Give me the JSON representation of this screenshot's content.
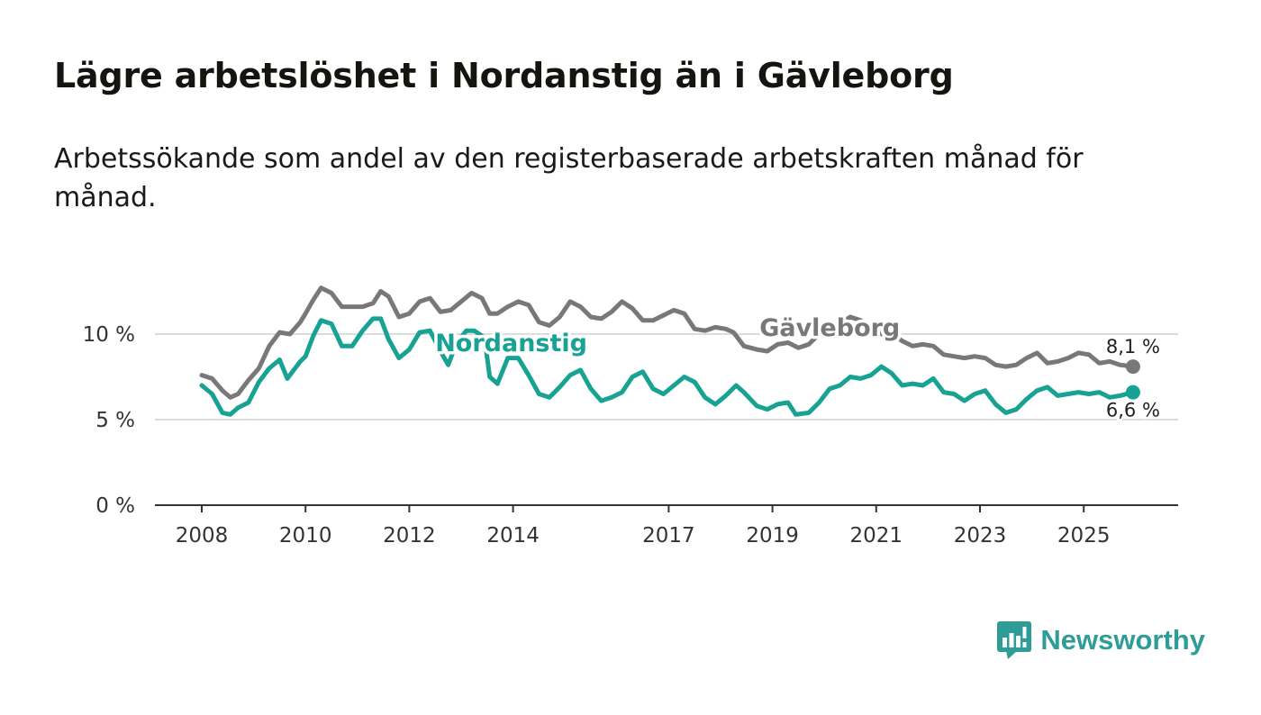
{
  "title": "Lägre arbetslöshet i Nordanstig än i Gävleborg",
  "subtitle": "Arbetssökande som andel av den registerbaserade arbetskraften månad för månad.",
  "brand": {
    "name": "Newsworthy",
    "icon": "newsworthy-logo-icon",
    "color": "#2f9d97"
  },
  "chart_data": {
    "type": "line",
    "title": "Lägre arbetslöshet i Nordanstig än i Gävleborg",
    "xlabel": "",
    "ylabel": "",
    "x_range": [
      2008,
      2026
    ],
    "ylim": [
      0,
      13.5
    ],
    "y_ticks": [
      {
        "value": 0,
        "label": "0 %"
      },
      {
        "value": 5,
        "label": "5 %"
      },
      {
        "value": 10,
        "label": "10 %"
      }
    ],
    "x_ticks": [
      {
        "value": 2008,
        "label": "2008"
      },
      {
        "value": 2010,
        "label": "2010"
      },
      {
        "value": 2012,
        "label": "2012"
      },
      {
        "value": 2014,
        "label": "2014"
      },
      {
        "value": 2017,
        "label": "2017"
      },
      {
        "value": 2019,
        "label": "2019"
      },
      {
        "value": 2021,
        "label": "2021"
      },
      {
        "value": 2023,
        "label": "2023"
      },
      {
        "value": 2025,
        "label": "2025"
      }
    ],
    "grid": true,
    "series": [
      {
        "name": "Gävleborg",
        "color": "#7a777a",
        "end_label": "8,1 %",
        "end_value": 8.1,
        "label_x": 2018.75,
        "label_y": 9.9,
        "points": [
          [
            2008.0,
            7.6
          ],
          [
            2008.2,
            7.4
          ],
          [
            2008.4,
            6.7
          ],
          [
            2008.55,
            6.3
          ],
          [
            2008.7,
            6.5
          ],
          [
            2008.9,
            7.3
          ],
          [
            2009.1,
            8.0
          ],
          [
            2009.3,
            9.3
          ],
          [
            2009.5,
            10.1
          ],
          [
            2009.7,
            10.0
          ],
          [
            2009.9,
            10.7
          ],
          [
            2010.0,
            11.2
          ],
          [
            2010.15,
            12.0
          ],
          [
            2010.3,
            12.7
          ],
          [
            2010.5,
            12.4
          ],
          [
            2010.7,
            11.6
          ],
          [
            2010.9,
            11.6
          ],
          [
            2011.1,
            11.6
          ],
          [
            2011.3,
            11.8
          ],
          [
            2011.45,
            12.5
          ],
          [
            2011.6,
            12.2
          ],
          [
            2011.8,
            11.0
          ],
          [
            2012.0,
            11.2
          ],
          [
            2012.2,
            11.9
          ],
          [
            2012.4,
            12.1
          ],
          [
            2012.6,
            11.3
          ],
          [
            2012.8,
            11.4
          ],
          [
            2013.0,
            11.9
          ],
          [
            2013.2,
            12.4
          ],
          [
            2013.4,
            12.1
          ],
          [
            2013.55,
            11.2
          ],
          [
            2013.7,
            11.2
          ],
          [
            2013.9,
            11.6
          ],
          [
            2014.1,
            11.9
          ],
          [
            2014.3,
            11.7
          ],
          [
            2014.5,
            10.7
          ],
          [
            2014.7,
            10.5
          ],
          [
            2014.9,
            11.0
          ],
          [
            2015.1,
            11.9
          ],
          [
            2015.3,
            11.6
          ],
          [
            2015.5,
            11.0
          ],
          [
            2015.7,
            10.9
          ],
          [
            2015.9,
            11.3
          ],
          [
            2016.1,
            11.9
          ],
          [
            2016.3,
            11.5
          ],
          [
            2016.5,
            10.8
          ],
          [
            2016.7,
            10.8
          ],
          [
            2016.9,
            11.1
          ],
          [
            2017.1,
            11.4
          ],
          [
            2017.3,
            11.2
          ],
          [
            2017.5,
            10.3
          ],
          [
            2017.7,
            10.2
          ],
          [
            2017.9,
            10.4
          ],
          [
            2018.1,
            10.3
          ],
          [
            2018.25,
            10.1
          ],
          [
            2018.45,
            9.3
          ],
          [
            2018.7,
            9.1
          ],
          [
            2018.9,
            9.0
          ],
          [
            2019.1,
            9.4
          ],
          [
            2019.3,
            9.5
          ],
          [
            2019.5,
            9.2
          ],
          [
            2019.7,
            9.4
          ],
          [
            2019.9,
            10.0
          ],
          [
            2020.1,
            10.1
          ],
          [
            2020.3,
            10.6
          ],
          [
            2020.5,
            11.0
          ],
          [
            2020.7,
            10.8
          ],
          [
            2020.9,
            10.4
          ],
          [
            2021.1,
            10.0
          ],
          [
            2021.3,
            10.0
          ],
          [
            2021.5,
            9.6
          ],
          [
            2021.7,
            9.3
          ],
          [
            2021.9,
            9.4
          ],
          [
            2022.1,
            9.3
          ],
          [
            2022.3,
            8.8
          ],
          [
            2022.5,
            8.7
          ],
          [
            2022.7,
            8.6
          ],
          [
            2022.9,
            8.7
          ],
          [
            2023.1,
            8.6
          ],
          [
            2023.3,
            8.2
          ],
          [
            2023.5,
            8.1
          ],
          [
            2023.7,
            8.2
          ],
          [
            2023.9,
            8.6
          ],
          [
            2024.1,
            8.9
          ],
          [
            2024.3,
            8.3
          ],
          [
            2024.5,
            8.4
          ],
          [
            2024.7,
            8.6
          ],
          [
            2024.9,
            8.9
          ],
          [
            2025.1,
            8.8
          ],
          [
            2025.3,
            8.3
          ],
          [
            2025.5,
            8.4
          ],
          [
            2025.7,
            8.2
          ],
          [
            2025.95,
            8.1
          ]
        ]
      },
      {
        "name": "Nordanstig",
        "color": "#17a294",
        "end_label": "6,6 %",
        "end_value": 6.6,
        "label_x": 2012.5,
        "label_y": 9.0,
        "points": [
          [
            2008.0,
            7.0
          ],
          [
            2008.2,
            6.5
          ],
          [
            2008.4,
            5.4
          ],
          [
            2008.55,
            5.3
          ],
          [
            2008.7,
            5.7
          ],
          [
            2008.9,
            6.0
          ],
          [
            2009.1,
            7.2
          ],
          [
            2009.3,
            8.0
          ],
          [
            2009.5,
            8.5
          ],
          [
            2009.65,
            7.4
          ],
          [
            2009.9,
            8.4
          ],
          [
            2010.0,
            8.7
          ],
          [
            2010.15,
            9.9
          ],
          [
            2010.3,
            10.8
          ],
          [
            2010.5,
            10.6
          ],
          [
            2010.7,
            9.3
          ],
          [
            2010.9,
            9.3
          ],
          [
            2011.1,
            10.2
          ],
          [
            2011.3,
            10.9
          ],
          [
            2011.45,
            10.9
          ],
          [
            2011.6,
            9.7
          ],
          [
            2011.8,
            8.6
          ],
          [
            2012.0,
            9.1
          ],
          [
            2012.2,
            10.1
          ],
          [
            2012.4,
            10.2
          ],
          [
            2012.6,
            9.0
          ],
          [
            2012.75,
            8.2
          ],
          [
            2012.9,
            9.4
          ],
          [
            2013.1,
            10.2
          ],
          [
            2013.25,
            10.2
          ],
          [
            2013.45,
            9.8
          ],
          [
            2013.55,
            7.5
          ],
          [
            2013.7,
            7.1
          ],
          [
            2013.9,
            8.6
          ],
          [
            2014.1,
            8.6
          ],
          [
            2014.3,
            7.6
          ],
          [
            2014.5,
            6.5
          ],
          [
            2014.7,
            6.3
          ],
          [
            2014.9,
            6.9
          ],
          [
            2015.1,
            7.6
          ],
          [
            2015.3,
            7.9
          ],
          [
            2015.5,
            6.8
          ],
          [
            2015.7,
            6.1
          ],
          [
            2015.9,
            6.3
          ],
          [
            2016.1,
            6.6
          ],
          [
            2016.3,
            7.5
          ],
          [
            2016.5,
            7.8
          ],
          [
            2016.7,
            6.8
          ],
          [
            2016.9,
            6.5
          ],
          [
            2017.1,
            7.0
          ],
          [
            2017.3,
            7.5
          ],
          [
            2017.5,
            7.2
          ],
          [
            2017.7,
            6.3
          ],
          [
            2017.9,
            5.9
          ],
          [
            2018.1,
            6.4
          ],
          [
            2018.3,
            7.0
          ],
          [
            2018.45,
            6.6
          ],
          [
            2018.7,
            5.8
          ],
          [
            2018.9,
            5.6
          ],
          [
            2019.1,
            5.9
          ],
          [
            2019.3,
            6.0
          ],
          [
            2019.45,
            5.3
          ],
          [
            2019.7,
            5.4
          ],
          [
            2019.9,
            6.0
          ],
          [
            2020.1,
            6.8
          ],
          [
            2020.3,
            7.0
          ],
          [
            2020.5,
            7.5
          ],
          [
            2020.7,
            7.4
          ],
          [
            2020.9,
            7.6
          ],
          [
            2021.1,
            8.1
          ],
          [
            2021.3,
            7.7
          ],
          [
            2021.5,
            7.0
          ],
          [
            2021.7,
            7.1
          ],
          [
            2021.9,
            7.0
          ],
          [
            2022.1,
            7.4
          ],
          [
            2022.3,
            6.6
          ],
          [
            2022.5,
            6.5
          ],
          [
            2022.7,
            6.1
          ],
          [
            2022.9,
            6.5
          ],
          [
            2023.1,
            6.7
          ],
          [
            2023.3,
            5.9
          ],
          [
            2023.5,
            5.4
          ],
          [
            2023.7,
            5.6
          ],
          [
            2023.9,
            6.2
          ],
          [
            2024.1,
            6.7
          ],
          [
            2024.3,
            6.9
          ],
          [
            2024.5,
            6.4
          ],
          [
            2024.7,
            6.5
          ],
          [
            2024.9,
            6.6
          ],
          [
            2025.1,
            6.5
          ],
          [
            2025.3,
            6.6
          ],
          [
            2025.5,
            6.3
          ],
          [
            2025.7,
            6.4
          ],
          [
            2025.95,
            6.6
          ]
        ]
      }
    ]
  }
}
